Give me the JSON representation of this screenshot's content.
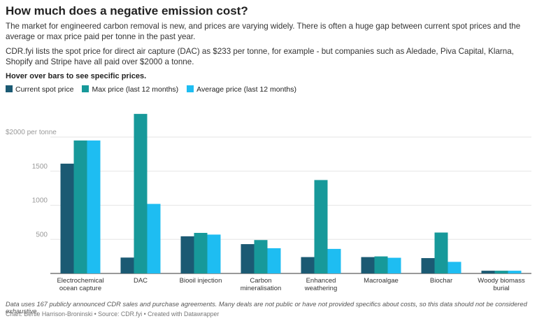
{
  "chart_data": {
    "type": "bar",
    "title": "How much does a negative emission cost?",
    "description": [
      "The market for engineered carbon removal is new, and prices are varying widely. There is often a huge gap between current spot prices and the average or max price paid per tonne in the past year.",
      "CDR.fyi lists the spot price for direct air capture (DAC) as $233 per tonne, for example - but companies such as Aledade, Piva Capital, Klarna, Shopify and Stripe have all paid over $2000 a tonne."
    ],
    "instruction": "Hover over bars to see specific prices.",
    "categories": [
      "Electrochemical ocean capture",
      "DAC",
      "Biooil injection",
      "Carbon mineralisation",
      "Enhanced weathering",
      "Macroalgae",
      "Biochar",
      "Woody biomass burial"
    ],
    "series": [
      {
        "name": "Current spot price",
        "color": "#1b5a73",
        "values": [
          1610,
          233,
          545,
          430,
          240,
          240,
          225,
          40
        ]
      },
      {
        "name": "Max price (last 12 months)",
        "color": "#17999a",
        "values": [
          1950,
          2340,
          595,
          490,
          1370,
          250,
          600,
          40
        ]
      },
      {
        "name": "Average price (last 12 months)",
        "color": "#1ebdf2",
        "values": [
          1950,
          1020,
          570,
          370,
          360,
          230,
          170,
          40
        ]
      }
    ],
    "ylim": [
      0,
      2400
    ],
    "yticks": [
      500,
      1000,
      1500,
      {
        "value": 2000,
        "label": "$2000 per tonne"
      }
    ],
    "grid": true,
    "notes": "Data uses 167 publicly announced CDR sales and purchase agreements. Many deals are not public or have not provided specifics about costs, so this data should not be considered exhaustive.",
    "credit": "Chart: Bertie Harrison-Broninski • Source: CDR.fyi • Created with Datawrapper"
  }
}
